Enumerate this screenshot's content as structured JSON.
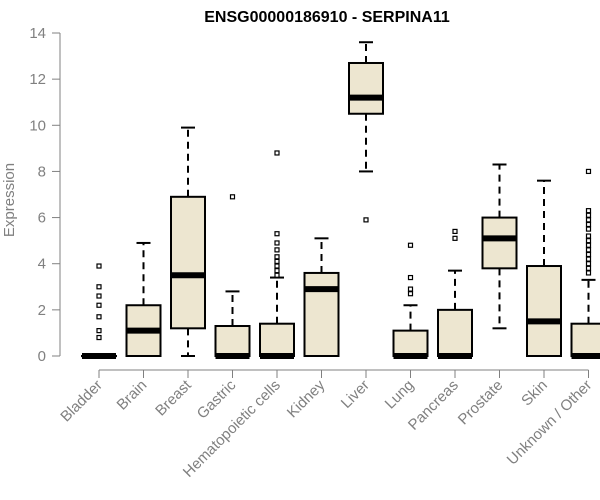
{
  "chart_data": {
    "type": "boxplot",
    "title": "ENSG00000186910 - SERPINA11",
    "xlabel": "",
    "ylabel": "Expression",
    "ylim": [
      0,
      14
    ],
    "yticks": [
      0,
      2,
      4,
      6,
      8,
      10,
      12,
      14
    ],
    "box_fill": "#ede6d0",
    "categories": [
      "Bladder",
      "Brain",
      "Breast",
      "Gastric",
      "Hematopoietic cells",
      "Kidney",
      "Liver",
      "Lung",
      "Pancreas",
      "Prostate",
      "Skin",
      "Unknown / Other"
    ],
    "boxes": [
      {
        "whisker_low": 0,
        "q1": 0,
        "median": 0,
        "q3": 0,
        "whisker_high": 0,
        "outliers": [
          3.9,
          3.0,
          2.6,
          2.2,
          1.7,
          1.1,
          0.8
        ]
      },
      {
        "whisker_low": 0,
        "q1": 0,
        "median": 1.1,
        "q3": 2.2,
        "whisker_high": 4.9,
        "outliers": []
      },
      {
        "whisker_low": 0,
        "q1": 1.2,
        "median": 3.5,
        "q3": 6.9,
        "whisker_high": 9.9,
        "outliers": []
      },
      {
        "whisker_low": 0,
        "q1": 0,
        "median": 0,
        "q3": 1.3,
        "whisker_high": 2.8,
        "outliers": [
          6.9
        ]
      },
      {
        "whisker_low": 0,
        "q1": 0,
        "median": 0,
        "q3": 1.4,
        "whisker_high": 3.4,
        "outliers": [
          8.8,
          5.3,
          4.9,
          4.6,
          4.3,
          4.1,
          3.9,
          3.7,
          3.5
        ]
      },
      {
        "whisker_low": 0,
        "q1": 0,
        "median": 2.9,
        "q3": 3.6,
        "whisker_high": 5.1,
        "outliers": []
      },
      {
        "whisker_low": 8.0,
        "q1": 10.5,
        "median": 11.2,
        "q3": 12.7,
        "whisker_high": 13.6,
        "outliers": [
          5.9
        ]
      },
      {
        "whisker_low": 0,
        "q1": 0,
        "median": 0,
        "q3": 1.1,
        "whisker_high": 2.2,
        "outliers": [
          4.8,
          3.4,
          2.9,
          2.7
        ]
      },
      {
        "whisker_low": 0,
        "q1": 0,
        "median": 0,
        "q3": 2.0,
        "whisker_high": 3.7,
        "outliers": [
          5.4,
          5.1
        ]
      },
      {
        "whisker_low": 1.2,
        "q1": 3.8,
        "median": 5.1,
        "q3": 6.0,
        "whisker_high": 8.3,
        "outliers": []
      },
      {
        "whisker_low": 0,
        "q1": 0,
        "median": 1.5,
        "q3": 3.9,
        "whisker_high": 7.6,
        "outliers": []
      },
      {
        "whisker_low": 0,
        "q1": 0,
        "median": 0,
        "q3": 1.4,
        "whisker_high": 3.3,
        "outliers": [
          8.0,
          6.3,
          6.1,
          5.9,
          5.7,
          5.5,
          5.2,
          5.0,
          4.8,
          4.6,
          4.4,
          4.2,
          4.0,
          3.8,
          3.6
        ]
      }
    ]
  }
}
